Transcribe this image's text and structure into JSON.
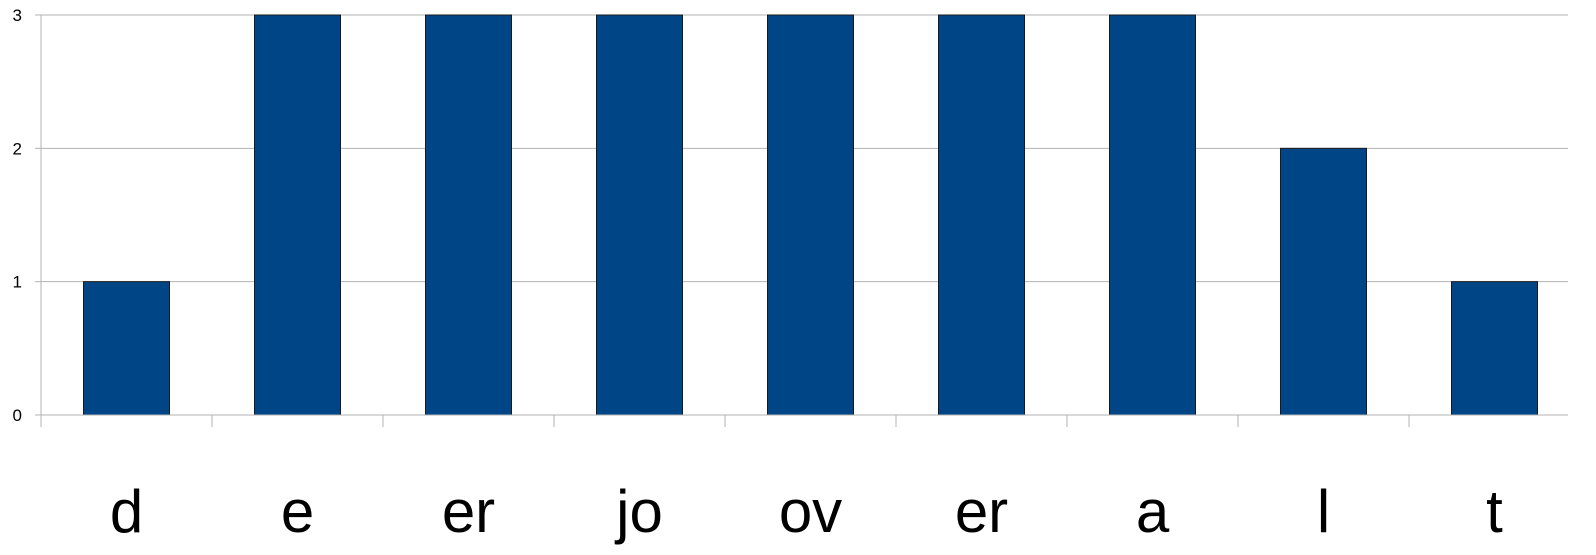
{
  "chart_data": {
    "type": "bar",
    "categories": [
      "d",
      "e",
      "er",
      "jo",
      "ov",
      "er",
      "a",
      "l",
      "t"
    ],
    "values": [
      1,
      3,
      3,
      3,
      3,
      3,
      3,
      2,
      1
    ],
    "title": "",
    "xlabel": "",
    "ylabel": "",
    "ylim": [
      0,
      3
    ],
    "yticks": [
      "0",
      "1",
      "2",
      "3"
    ],
    "grid": true,
    "legend": "none",
    "colors": {
      "bar_fill": "#004586",
      "bar_stroke": "#1a1a1a",
      "grid": "#b3b3b3",
      "axis": "#b3b3b3"
    }
  }
}
